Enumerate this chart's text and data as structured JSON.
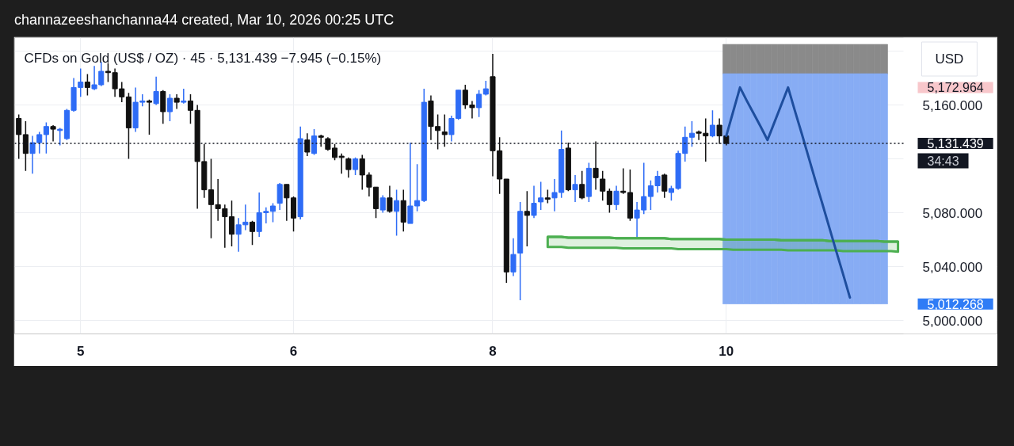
{
  "chart_data": {
    "type": "candlestick",
    "title": "channazeeshanchanna44 created, Mar 10, 2026 00:25 UTC",
    "subtitle": "CFDs on Gold (US$ / OZ) · 45 · 5,131.439 −7.945 (−0.15%)",
    "ylabel": "USD",
    "categories": [
      null,
      null,
      null,
      null,
      null,
      null,
      null,
      null,
      null,
      "5",
      null,
      null,
      null,
      null,
      null,
      null,
      null,
      null,
      null,
      null,
      null,
      null,
      null,
      null,
      null,
      null,
      null,
      null,
      null,
      null,
      null,
      null,
      null,
      null,
      null,
      null,
      null,
      null,
      null,
      null,
      "6",
      null,
      null,
      null,
      null,
      null,
      null,
      null,
      null,
      null,
      null,
      null,
      null,
      null,
      null,
      null,
      null,
      null,
      null,
      null,
      null,
      null,
      null,
      null,
      null,
      null,
      null,
      null,
      null,
      "8",
      null,
      null,
      null,
      null,
      null,
      null,
      null,
      null,
      null,
      null,
      null,
      null,
      null,
      null,
      null,
      null,
      null,
      null,
      null,
      null,
      null,
      null,
      null,
      null,
      null,
      null,
      null,
      null,
      null,
      null,
      null,
      null,
      null,
      "10",
      null,
      null,
      null,
      null,
      null,
      null,
      null,
      null,
      null,
      null,
      null,
      null,
      null,
      null,
      null,
      null,
      null,
      null,
      null,
      null,
      null,
      null,
      null,
      null,
      null
    ],
    "ohlc": [
      [
        5150,
        5153,
        5120,
        5138
      ],
      [
        5138,
        5148,
        5111,
        5124
      ],
      [
        5124,
        5137,
        5109,
        5132
      ],
      [
        5132,
        5140,
        5124,
        5138
      ],
      [
        5138,
        5147,
        5124,
        5144
      ],
      [
        5144,
        5145,
        5133,
        5142
      ],
      [
        5141,
        5143,
        5130,
        5142
      ],
      [
        5135,
        5157,
        5134,
        5156
      ],
      [
        5156,
        5180,
        5155,
        5173
      ],
      [
        5173,
        5187,
        5166,
        5177
      ],
      [
        5177,
        5183,
        5167,
        5173
      ],
      [
        5172,
        5189,
        5171,
        5175
      ],
      [
        5175,
        5192,
        5174,
        5185
      ],
      [
        5185,
        5191,
        5177,
        5184
      ],
      [
        5184,
        5187,
        5166,
        5172
      ],
      [
        5172,
        5177,
        5162,
        5166
      ],
      [
        5166,
        5169,
        5120,
        5143
      ],
      [
        5143,
        5173,
        5140,
        5162
      ],
      [
        5162,
        5168,
        5159,
        5163
      ],
      [
        5163,
        5164,
        5138,
        5162
      ],
      [
        5161,
        5181,
        5160,
        5170
      ],
      [
        5170,
        5171,
        5146,
        5155
      ],
      [
        5155,
        5168,
        5148,
        5165
      ],
      [
        5165,
        5168,
        5157,
        5162
      ],
      [
        5162,
        5172,
        5161,
        5163
      ],
      [
        5163,
        5168,
        5146,
        5156
      ],
      [
        5156,
        5160,
        5083,
        5118
      ],
      [
        5118,
        5131,
        5091,
        5097
      ],
      [
        5097,
        5120,
        5061,
        5086
      ],
      [
        5086,
        5105,
        5074,
        5083
      ],
      [
        5083,
        5086,
        5054,
        5077
      ],
      [
        5077,
        5089,
        5055,
        5064
      ],
      [
        5064,
        5076,
        5051,
        5071
      ],
      [
        5071,
        5086,
        5067,
        5073
      ],
      [
        5073,
        5074,
        5056,
        5066
      ],
      [
        5066,
        5095,
        5062,
        5080
      ],
      [
        5080,
        5084,
        5072,
        5081
      ],
      [
        5081,
        5087,
        5073,
        5085
      ],
      [
        5087,
        5102,
        5082,
        5101
      ],
      [
        5101,
        5101,
        5074,
        5091
      ],
      [
        5091,
        5092,
        5066,
        5076
      ],
      [
        5077,
        5144,
        5075,
        5135
      ],
      [
        5134,
        5139,
        5122,
        5125
      ],
      [
        5124,
        5142,
        5123,
        5137
      ],
      [
        5137,
        5138,
        5129,
        5136
      ],
      [
        5135,
        5136,
        5126,
        5127
      ],
      [
        5128,
        5131,
        5119,
        5121
      ],
      [
        5122,
        5124,
        5109,
        5121
      ],
      [
        5120,
        5121,
        5106,
        5112
      ],
      [
        5112,
        5121,
        5108,
        5120
      ],
      [
        5120,
        5123,
        5097,
        5108
      ],
      [
        5108,
        5110,
        5092,
        5099
      ],
      [
        5099,
        5099,
        5076,
        5083
      ],
      [
        5082,
        5093,
        5080,
        5091
      ],
      [
        5091,
        5100,
        5080,
        5081
      ],
      [
        5081,
        5097,
        5063,
        5089
      ],
      [
        5089,
        5097,
        5066,
        5073
      ],
      [
        5072,
        5132,
        5072,
        5085
      ],
      [
        5085,
        5116,
        5081,
        5089
      ],
      [
        5089,
        5172,
        5088,
        5162
      ],
      [
        5163,
        5167,
        5134,
        5144
      ],
      [
        5144,
        5153,
        5127,
        5141
      ],
      [
        5140,
        5153,
        5129,
        5138
      ],
      [
        5138,
        5152,
        5133,
        5150
      ],
      [
        5150,
        5171,
        5149,
        5171
      ],
      [
        5171,
        5175,
        5157,
        5160
      ],
      [
        5160,
        5163,
        5150,
        5158
      ],
      [
        5158,
        5171,
        5151,
        5168
      ],
      [
        5168,
        5178,
        5167,
        5172
      ],
      [
        5181,
        5198,
        5107,
        5126
      ],
      [
        5126,
        5136,
        5094,
        5105
      ],
      [
        5105,
        5105,
        5028,
        5036
      ],
      [
        5036,
        5061,
        5033,
        5049
      ],
      [
        5050,
        5088,
        5015,
        5081
      ],
      [
        5081,
        5096,
        5055,
        5078
      ],
      [
        5078,
        5100,
        5076,
        5087
      ],
      [
        5088,
        5103,
        5082,
        5091
      ],
      [
        5091,
        5097,
        5087,
        5090
      ],
      [
        5091,
        5105,
        5081,
        5095
      ],
      [
        5095,
        5141,
        5091,
        5127
      ],
      [
        5128,
        5132,
        5096,
        5097
      ],
      [
        5097,
        5108,
        5088,
        5101
      ],
      [
        5101,
        5111,
        5090,
        5091
      ],
      [
        5092,
        5117,
        5088,
        5113
      ],
      [
        5113,
        5133,
        5097,
        5106
      ],
      [
        5105,
        5111,
        5089,
        5096
      ],
      [
        5096,
        5098,
        5080,
        5086
      ],
      [
        5086,
        5100,
        5082,
        5096
      ],
      [
        5096,
        5113,
        5094,
        5095
      ],
      [
        5095,
        5112,
        5074,
        5076
      ],
      [
        5076,
        5088,
        5061,
        5082
      ],
      [
        5082,
        5117,
        5079,
        5092
      ],
      [
        5092,
        5104,
        5082,
        5100
      ],
      [
        5100,
        5111,
        5095,
        5107
      ],
      [
        5108,
        5109,
        5091,
        5096
      ],
      [
        5095,
        5100,
        5089,
        5098
      ],
      [
        5098,
        5126,
        5097,
        5124
      ],
      [
        5124,
        5144,
        5118,
        5136
      ],
      [
        5136,
        5148,
        5129,
        5139
      ],
      [
        5140,
        5141,
        5134,
        5139
      ],
      [
        5139,
        5150,
        5118,
        5137
      ],
      [
        5137,
        5156,
        5136,
        5145
      ],
      [
        5145,
        5150,
        5131,
        5137
      ],
      [
        5137,
        5138,
        5130,
        5131.439
      ],
      null,
      null,
      null,
      null,
      null,
      null,
      null,
      null,
      null,
      null,
      null,
      null,
      null,
      null,
      null,
      null,
      null,
      null,
      null,
      null,
      null,
      null,
      null,
      null,
      null
    ],
    "colors": [
      "#111111",
      "#111111",
      "#2e6cf6",
      "#2e6cf6",
      "#2e6cf6",
      "#111111",
      "#2e6cf6",
      "#2e6cf6",
      "#2e6cf6",
      "#2e6cf6",
      "#111111",
      "#2e6cf6",
      "#2e6cf6",
      "#111111",
      "#111111",
      "#111111",
      "#111111",
      "#2e6cf6",
      "#2e6cf6",
      "#111111",
      "#2e6cf6",
      "#111111",
      "#2e6cf6",
      "#111111",
      "#2e6cf6",
      "#111111",
      "#111111",
      "#111111",
      "#111111",
      "#111111",
      "#111111",
      "#111111",
      "#2e6cf6",
      "#2e6cf6",
      "#111111",
      "#2e6cf6",
      "#2e6cf6",
      "#2e6cf6",
      "#2e6cf6",
      "#111111",
      "#111111",
      "#2e6cf6",
      "#111111",
      "#2e6cf6",
      "#111111",
      "#111111",
      "#111111",
      "#111111",
      "#111111",
      "#2e6cf6",
      "#111111",
      "#111111",
      "#111111",
      "#2e6cf6",
      "#111111",
      "#2e6cf6",
      "#111111",
      "#2e6cf6",
      "#2e6cf6",
      "#2e6cf6",
      "#111111",
      "#111111",
      "#111111",
      "#2e6cf6",
      "#2e6cf6",
      "#111111",
      "#111111",
      "#2e6cf6",
      "#2e6cf6",
      "#111111",
      "#111111",
      "#111111",
      "#2e6cf6",
      "#2e6cf6",
      "#111111",
      "#2e6cf6",
      "#2e6cf6",
      "#111111",
      "#2e6cf6",
      "#2e6cf6",
      "#111111",
      "#2e6cf6",
      "#111111",
      "#2e6cf6",
      "#111111",
      "#111111",
      "#111111",
      "#2e6cf6",
      "#111111",
      "#111111",
      "#2e6cf6",
      "#2e6cf6",
      "#2e6cf6",
      "#2e6cf6",
      "#111111",
      "#2e6cf6",
      "#2e6cf6",
      "#2e6cf6",
      "#2e6cf6",
      "#111111",
      "#111111",
      "#2e6cf6",
      "#111111",
      "#111111",
      null,
      null,
      null,
      null,
      null,
      null,
      null,
      null,
      null,
      null,
      null,
      null,
      null,
      null,
      null,
      null,
      null,
      null,
      null,
      null,
      null,
      null,
      null,
      null,
      null
    ],
    "series": [
      {
        "type": "bar",
        "color": "#8a8a8a",
        "values": [
          null,
          null,
          null,
          null,
          null,
          null,
          null,
          null,
          null,
          null,
          null,
          null,
          null,
          null,
          null,
          null,
          null,
          null,
          null,
          null,
          null,
          null,
          null,
          null,
          null,
          null,
          null,
          null,
          null,
          null,
          null,
          null,
          null,
          null,
          null,
          null,
          null,
          null,
          null,
          null,
          null,
          null,
          null,
          null,
          null,
          null,
          null,
          null,
          null,
          null,
          null,
          null,
          null,
          null,
          null,
          null,
          null,
          null,
          null,
          null,
          null,
          null,
          null,
          null,
          null,
          null,
          null,
          null,
          null,
          null,
          null,
          null,
          null,
          null,
          null,
          null,
          null,
          null,
          null,
          null,
          null,
          null,
          null,
          null,
          null,
          null,
          null,
          null,
          null,
          null,
          null,
          null,
          null,
          null,
          null,
          null,
          null,
          null,
          null,
          null,
          null,
          null,
          null,
          22,
          22,
          22,
          22,
          22,
          22,
          22,
          22,
          22,
          22,
          22,
          22,
          22,
          22,
          22,
          22,
          22,
          22,
          22,
          22,
          22,
          22,
          22,
          22,
          null,
          null
        ],
        "base": [
          null,
          null,
          null,
          null,
          null,
          null,
          null,
          null,
          null,
          null,
          null,
          null,
          null,
          null,
          null,
          null,
          null,
          null,
          null,
          null,
          null,
          null,
          null,
          null,
          null,
          null,
          null,
          null,
          null,
          null,
          null,
          null,
          null,
          null,
          null,
          null,
          null,
          null,
          null,
          null,
          null,
          null,
          null,
          null,
          null,
          null,
          null,
          null,
          null,
          null,
          null,
          null,
          null,
          null,
          null,
          null,
          null,
          null,
          null,
          null,
          null,
          null,
          null,
          null,
          null,
          null,
          null,
          null,
          null,
          null,
          null,
          null,
          null,
          null,
          null,
          null,
          null,
          null,
          null,
          null,
          null,
          null,
          null,
          null,
          null,
          null,
          null,
          null,
          null,
          null,
          null,
          null,
          null,
          null,
          null,
          null,
          null,
          null,
          null,
          null,
          null,
          null,
          null,
          5183,
          5183,
          5183,
          5183,
          5183,
          5183,
          5183,
          5183,
          5183,
          5183,
          5183,
          5183,
          5183,
          5183,
          5183,
          5183,
          5183,
          5183,
          5183,
          5183,
          5183,
          5183,
          5183,
          5183,
          null,
          null
        ]
      },
      {
        "type": "bar",
        "color": "#87acf4",
        "values": [
          null,
          null,
          null,
          null,
          null,
          null,
          null,
          null,
          null,
          null,
          null,
          null,
          null,
          null,
          null,
          null,
          null,
          null,
          null,
          null,
          null,
          null,
          null,
          null,
          null,
          null,
          null,
          null,
          null,
          null,
          null,
          null,
          null,
          null,
          null,
          null,
          null,
          null,
          null,
          null,
          null,
          null,
          null,
          null,
          null,
          null,
          null,
          null,
          null,
          null,
          null,
          null,
          null,
          null,
          null,
          null,
          null,
          null,
          null,
          null,
          null,
          null,
          null,
          null,
          null,
          null,
          null,
          null,
          null,
          null,
          null,
          null,
          null,
          null,
          null,
          null,
          null,
          null,
          null,
          null,
          null,
          null,
          null,
          null,
          null,
          null,
          null,
          null,
          null,
          null,
          null,
          null,
          null,
          null,
          null,
          null,
          null,
          null,
          null,
          null,
          null,
          null,
          null,
          171,
          171,
          171,
          171,
          171,
          171,
          171,
          171,
          171,
          171,
          171,
          171,
          171,
          171,
          171,
          171,
          171,
          171,
          171,
          171,
          171,
          171,
          171,
          171,
          null,
          null
        ],
        "base": [
          null,
          null,
          null,
          null,
          null,
          null,
          null,
          null,
          null,
          null,
          null,
          null,
          null,
          null,
          null,
          null,
          null,
          null,
          null,
          null,
          null,
          null,
          null,
          null,
          null,
          null,
          null,
          null,
          null,
          null,
          null,
          null,
          null,
          null,
          null,
          null,
          null,
          null,
          null,
          null,
          null,
          null,
          null,
          null,
          null,
          null,
          null,
          null,
          null,
          null,
          null,
          null,
          null,
          null,
          null,
          null,
          null,
          null,
          null,
          null,
          null,
          null,
          null,
          null,
          null,
          null,
          null,
          null,
          null,
          null,
          null,
          null,
          null,
          null,
          null,
          null,
          null,
          null,
          null,
          null,
          null,
          null,
          null,
          null,
          null,
          null,
          null,
          null,
          null,
          null,
          null,
          null,
          null,
          null,
          null,
          null,
          null,
          null,
          null,
          null,
          null,
          null,
          null,
          5012.268,
          5012.268,
          5012.268,
          5012.268,
          5012.268,
          5012.268,
          5012.268,
          5012.268,
          5012.268,
          5012.268,
          5012.268,
          5012.268,
          5012.268,
          5012.268,
          5012.268,
          5012.268,
          5012.268,
          5012.268,
          5012.268,
          5012.268,
          5012.268,
          5012.268,
          5012.268,
          5012.268,
          null,
          null
        ]
      },
      {
        "type": "line",
        "color": "#4caf50",
        "values": [
          null,
          null,
          null,
          null,
          null,
          null,
          null,
          null,
          null,
          null,
          null,
          null,
          null,
          null,
          null,
          null,
          null,
          null,
          null,
          null,
          null,
          null,
          null,
          null,
          null,
          null,
          null,
          null,
          null,
          null,
          null,
          null,
          null,
          null,
          null,
          null,
          null,
          null,
          null,
          null,
          null,
          null,
          null,
          null,
          null,
          null,
          null,
          null,
          null,
          null,
          null,
          null,
          null,
          null,
          null,
          null,
          null,
          null,
          null,
          null,
          null,
          null,
          null,
          null,
          null,
          null,
          null,
          null,
          null,
          null,
          null,
          null,
          null,
          null,
          null,
          null,
          null,
          5062,
          5062,
          5062,
          5061.5,
          5061.5,
          5061.5,
          5061.5,
          5061.5,
          5061.5,
          5061.5,
          5061,
          5061,
          5061,
          5061,
          5061,
          5061,
          5061,
          5061,
          5060.5,
          5060.5,
          5060.5,
          5060.5,
          5060.5,
          5060.5,
          5060.5,
          5060.5,
          5060,
          5060,
          5060,
          5060,
          5060,
          5060,
          5060,
          5060,
          5059.5,
          5059.5,
          5059.5,
          5059.5,
          5059.5,
          5059.5,
          5059.5,
          5059,
          5059,
          5059,
          5059,
          5059,
          5059,
          5059,
          5059,
          5058.5,
          5058.5,
          5058.5
        ],
        "upper": [
          null,
          null,
          null,
          null,
          null,
          null,
          null,
          null,
          null,
          null,
          null,
          null,
          null,
          null,
          null,
          null,
          null,
          null,
          null,
          null,
          null,
          null,
          null,
          null,
          null,
          null,
          null,
          null,
          null,
          null,
          null,
          null,
          null,
          null,
          null,
          null,
          null,
          null,
          null,
          null,
          null,
          null,
          null,
          null,
          null,
          null,
          null,
          null,
          null,
          null,
          null,
          null,
          null,
          null,
          null,
          null,
          null,
          null,
          null,
          null,
          null,
          null,
          null,
          null,
          null,
          null,
          null,
          null,
          null,
          null,
          null,
          null,
          null,
          null,
          null,
          null,
          null,
          5062,
          5062,
          5062,
          5061.5,
          5061.5,
          5061.5,
          5061.5,
          5061.5,
          5061.5,
          5061.5,
          5061,
          5061,
          5061,
          5061,
          5061,
          5061,
          5061,
          5061,
          5060.5,
          5060.5,
          5060.5,
          5060.5,
          5060.5,
          5060.5,
          5060.5,
          5060.5,
          5060,
          5060,
          5060,
          5060,
          5060,
          5060,
          5060,
          5060,
          5059.5,
          5059.5,
          5059.5,
          5059.5,
          5059.5,
          5059.5,
          5059.5,
          5059,
          5059,
          5059,
          5059,
          5059,
          5059,
          5059,
          5059,
          5058.5,
          5058.5,
          5058.5
        ],
        "lower": [
          null,
          null,
          null,
          null,
          null,
          null,
          null,
          null,
          null,
          null,
          null,
          null,
          null,
          null,
          null,
          null,
          null,
          null,
          null,
          null,
          null,
          null,
          null,
          null,
          null,
          null,
          null,
          null,
          null,
          null,
          null,
          null,
          null,
          null,
          null,
          null,
          null,
          null,
          null,
          null,
          null,
          null,
          null,
          null,
          null,
          null,
          null,
          null,
          null,
          null,
          null,
          null,
          null,
          null,
          null,
          null,
          null,
          null,
          null,
          null,
          null,
          null,
          null,
          null,
          null,
          null,
          null,
          null,
          null,
          null,
          null,
          null,
          null,
          null,
          null,
          null,
          null,
          5054.5,
          5054.5,
          5054.5,
          5054,
          5054,
          5054,
          5054,
          5054,
          5054,
          5054,
          5054,
          5053.5,
          5053.5,
          5053.5,
          5053.5,
          5053.5,
          5053.5,
          5053.5,
          5053.5,
          5053,
          5053,
          5053,
          5053,
          5053,
          5053,
          5053,
          5053,
          5052.5,
          5052.5,
          5052.5,
          5052.5,
          5052.5,
          5052.5,
          5052.5,
          5052.5,
          5052,
          5052,
          5052,
          5052,
          5052,
          5052,
          5052,
          5052,
          5051.5,
          5051.5,
          5051.5,
          5051.5,
          5051.5,
          5051.5,
          5051.5,
          5051.5,
          5051
        ]
      },
      {
        "type": "line",
        "color": "#1e4e9e",
        "values": [
          null,
          null,
          null,
          null,
          null,
          null,
          null,
          null,
          null,
          null,
          null,
          null,
          null,
          null,
          null,
          null,
          null,
          null,
          null,
          null,
          null,
          null,
          null,
          null,
          null,
          null,
          null,
          null,
          null,
          null,
          null,
          null,
          null,
          null,
          null,
          null,
          null,
          null,
          null,
          null,
          null,
          null,
          null,
          null,
          null,
          null,
          null,
          null,
          null,
          null,
          null,
          null,
          null,
          null,
          null,
          null,
          null,
          null,
          null,
          null,
          null,
          null,
          null,
          null,
          null,
          null,
          null,
          null,
          null,
          null,
          null,
          null,
          null,
          null,
          null,
          null,
          null,
          null,
          null,
          null,
          null,
          null,
          null,
          null,
          null,
          null,
          null,
          null,
          null,
          null,
          null,
          null,
          null,
          null,
          null,
          null,
          null,
          null,
          null,
          null,
          null,
          null,
          null,
          5137,
          5155,
          5173,
          5163,
          5153.5,
          5144,
          5134,
          5147,
          5160,
          5173,
          5155.5,
          5138.5,
          5121,
          5103.5,
          5086.5,
          5069,
          5051.5,
          5034.5,
          5017,
          null,
          null,
          null,
          null,
          null,
          null,
          null
        ]
      }
    ],
    "ylim": [
      4990,
      5210
    ],
    "yticks": [
      {
        "value": 5000,
        "label": "5,000.000"
      },
      {
        "value": 5040,
        "label": "5,040.000"
      },
      {
        "value": 5080,
        "label": "5,080.000"
      },
      {
        "value": 5120,
        "label": null
      },
      {
        "value": 5160,
        "label": "5,160.000"
      },
      {
        "value": 5200,
        "label": null
      }
    ],
    "grid": true,
    "ref_lines": [
      {
        "axis": "y",
        "value": 5131.439,
        "label": "5,131.439",
        "color": "#131722",
        "line_style": "dotted"
      }
    ],
    "annotations": [
      "5,172.964",
      "34:43",
      "5,012.268"
    ]
  }
}
